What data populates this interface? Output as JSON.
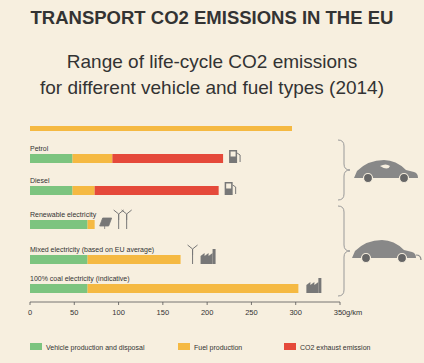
{
  "chart_data": {
    "type": "bar",
    "orientation": "horizontal",
    "stacked": true,
    "title": "TRANSPORT CO2 EMISSIONS IN THE EU",
    "subtitle": "Range of life-cycle CO2 emissions for different vehicle and fuel types (2014)",
    "xlabel": "g/km",
    "categories": [
      "Petrol",
      "Diesel",
      "Renewable electricity",
      "Mixed electricity (based on EU average)",
      "100% coal electricity (indicative)"
    ],
    "series": [
      {
        "name": "Vehicle production and disposal",
        "color": "#7cc47f",
        "values": [
          48,
          48,
          65,
          65,
          65
        ]
      },
      {
        "name": "Fuel production",
        "color": "#f5b942",
        "values": [
          45,
          25,
          8,
          105,
          238
        ]
      },
      {
        "name": "CO2 exhaust emission",
        "color": "#e5493a",
        "values": [
          125,
          140,
          0,
          0,
          0
        ]
      }
    ],
    "xlim": [
      0,
      350
    ],
    "xticks": [
      0,
      50,
      100,
      150,
      200,
      250,
      300,
      350
    ],
    "grid": false,
    "legend": "bottom"
  }
}
